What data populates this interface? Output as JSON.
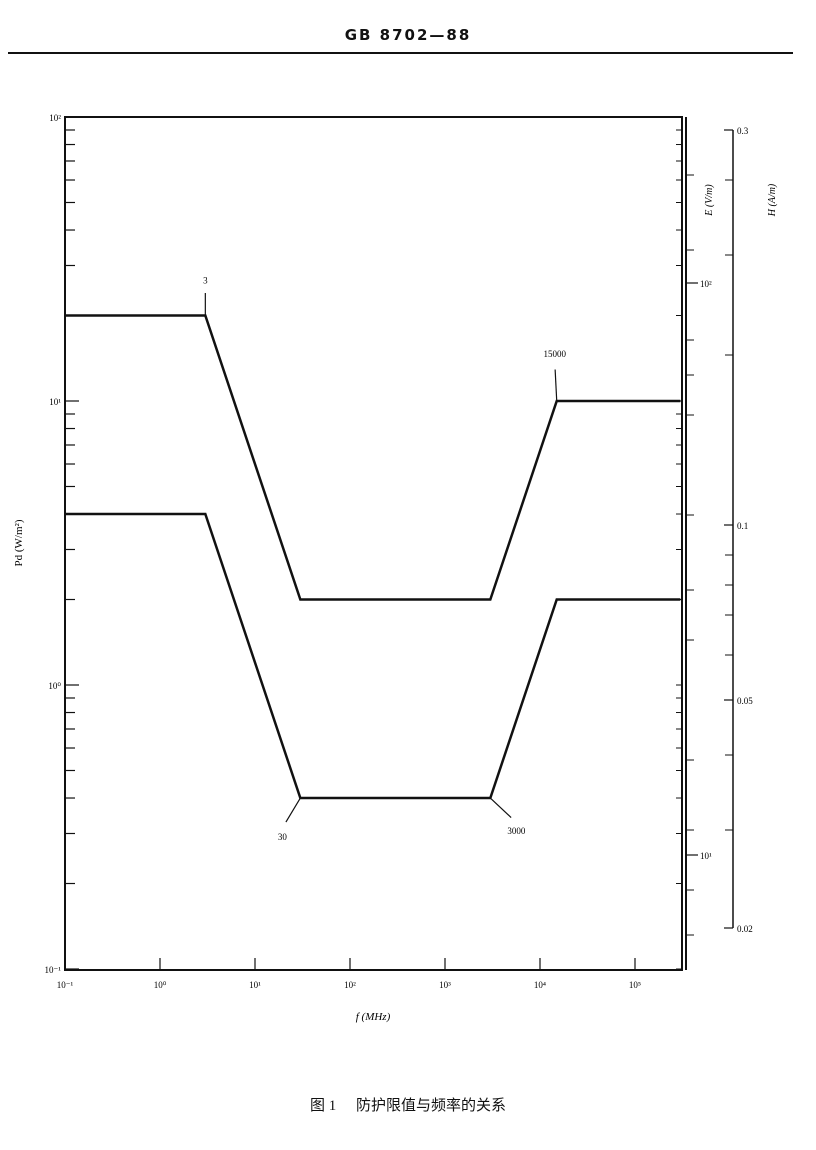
{
  "header": {
    "standard_code": "GB 8702—88"
  },
  "caption": {
    "figure_label": "图 1",
    "title": "防护限值与频率的关系"
  },
  "chart_data": {
    "type": "line",
    "title": "",
    "xlabel": "f (MHz)",
    "ylabel": "Pd (W/m²)",
    "right_axis_1_label": "E (V/m)",
    "right_axis_2_label": "H (A/m)",
    "x_scale": "log",
    "y_scale": "log",
    "xlim": [
      0.1,
      300000
    ],
    "ylim": [
      0.1,
      100
    ],
    "grid": false,
    "x_ticks": [
      {
        "value": 0.1,
        "label": "10⁻¹"
      },
      {
        "value": 1,
        "label": "10⁰"
      },
      {
        "value": 10,
        "label": "10¹"
      },
      {
        "value": 100,
        "label": "10²"
      },
      {
        "value": 1000,
        "label": "10³"
      },
      {
        "value": 10000,
        "label": "10⁴"
      },
      {
        "value": 100000,
        "label": "10⁵"
      }
    ],
    "y_ticks": [
      {
        "value": 100,
        "label": "10²"
      },
      {
        "value": 10,
        "label": "10¹"
      },
      {
        "value": 1,
        "label": "10⁰"
      },
      {
        "value": 0.1,
        "label": "10⁻¹"
      }
    ],
    "e_ticks": [
      {
        "value": 100,
        "label": "10²"
      },
      {
        "value": 10,
        "label": "10¹"
      }
    ],
    "h_ticks": [
      {
        "value": 0.3,
        "label": "0.3"
      },
      {
        "value": 0.1,
        "label": "0.1"
      },
      {
        "value": 0.05,
        "label": "0.05"
      },
      {
        "value": 0.02,
        "label": "0.02"
      }
    ],
    "series": [
      {
        "points": [
          [
            0.1,
            20
          ],
          [
            3,
            20
          ],
          [
            30,
            2
          ],
          [
            3000,
            2
          ],
          [
            15000,
            10
          ],
          [
            300000,
            10
          ]
        ]
      },
      {
        "points": [
          [
            0.1,
            4
          ],
          [
            3,
            4
          ],
          [
            30,
            0.4
          ],
          [
            3000,
            0.4
          ],
          [
            15000,
            2
          ],
          [
            300000,
            2
          ]
        ]
      }
    ],
    "annotations": [
      {
        "label": "3",
        "x": 3,
        "y": 20,
        "series": 0
      },
      {
        "label": "15000",
        "x": 15000,
        "y": 10,
        "series": 0
      },
      {
        "label": "30",
        "x": 30,
        "y": 0.4,
        "series": 1
      },
      {
        "label": "3000",
        "x": 3000,
        "y": 0.4,
        "series": 1
      }
    ],
    "line_color": "#111111"
  }
}
